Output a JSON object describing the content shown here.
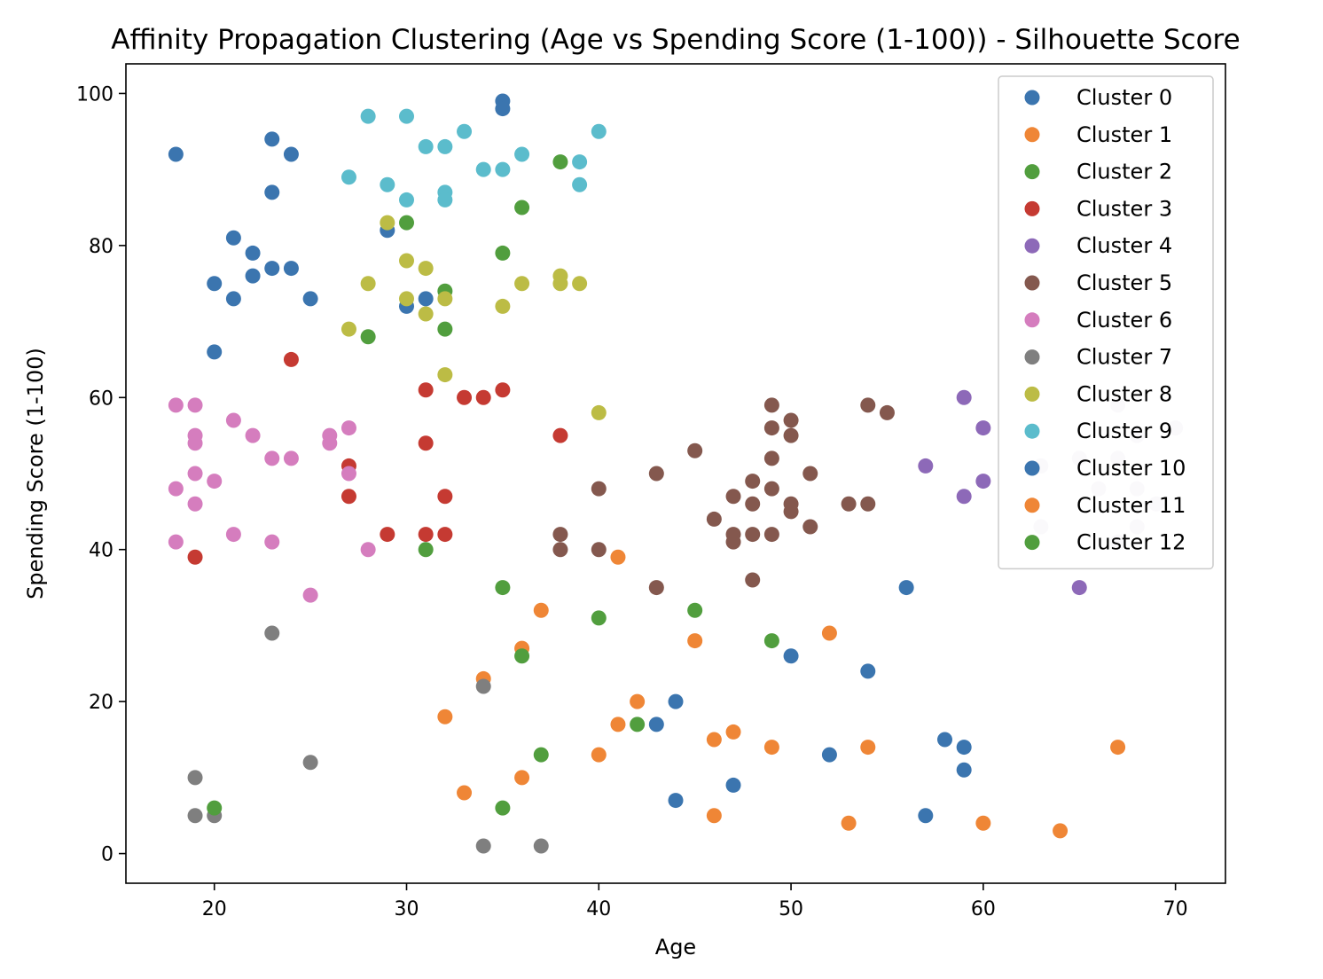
{
  "chart_data": {
    "type": "scatter",
    "title": "Affinity Propagation Clustering (Age vs Spending Score (1-100)) - Silhouette Score",
    "xlabel": "Age",
    "ylabel": "Spending Score (1-100)",
    "xlim": [
      15.4,
      72.6
    ],
    "ylim": [
      -3.9,
      103.9
    ],
    "xticks": [
      20,
      30,
      40,
      50,
      60,
      70
    ],
    "yticks": [
      0,
      20,
      40,
      60,
      80,
      100
    ],
    "grid": false,
    "legend_position": "top-right",
    "series": [
      {
        "name": "Cluster 0",
        "color": "#3b75af",
        "x": [
          35,
          35,
          29,
          30,
          31
        ],
        "y": [
          99,
          98,
          82,
          72,
          73
        ]
      },
      {
        "name": "Cluster 1",
        "color": "#ef8636",
        "x": [
          41,
          36,
          37,
          34,
          32,
          33,
          36,
          40,
          41,
          42
        ],
        "y": [
          39,
          27,
          32,
          23,
          18,
          8,
          10,
          13,
          17,
          20
        ]
      },
      {
        "name": "Cluster 2",
        "color": "#519e3e",
        "x": [
          38,
          30,
          36,
          35,
          32,
          32,
          28
        ],
        "y": [
          91,
          83,
          85,
          79,
          74,
          69,
          68
        ]
      },
      {
        "name": "Cluster 3",
        "color": "#c53a32",
        "x": [
          24,
          31,
          33,
          34,
          35,
          31,
          38,
          27,
          27,
          32,
          29,
          31,
          32,
          19
        ],
        "y": [
          65,
          61,
          60,
          60,
          61,
          54,
          55,
          51,
          47,
          47,
          42,
          42,
          42,
          39
        ]
      },
      {
        "name": "Cluster 4",
        "color": "#8d69b8",
        "x": [
          59,
          60,
          57,
          60,
          59,
          65
        ],
        "y": [
          60,
          56,
          51,
          49,
          47,
          35
        ]
      },
      {
        "name": "Cluster 5",
        "color": "#84584e",
        "x": [
          40,
          38,
          38,
          40,
          43,
          45,
          46,
          47,
          47,
          47,
          48,
          48,
          48,
          48,
          49,
          49,
          49,
          49,
          49,
          50,
          50,
          50,
          50,
          51,
          51,
          53,
          54,
          54,
          55,
          43
        ],
        "y": [
          48,
          42,
          40,
          40,
          50,
          53,
          44,
          47,
          42,
          41,
          49,
          46,
          42,
          36,
          59,
          56,
          52,
          48,
          42,
          57,
          55,
          46,
          45,
          50,
          43,
          46,
          46,
          59,
          58,
          35
        ]
      },
      {
        "name": "Cluster 6",
        "color": "#d57dbe",
        "x": [
          18,
          19,
          19,
          19,
          19,
          19,
          18,
          18,
          20,
          21,
          21,
          22,
          23,
          23,
          24,
          26,
          26,
          27,
          27,
          28,
          25
        ],
        "y": [
          59,
          59,
          55,
          54,
          50,
          46,
          48,
          41,
          49,
          57,
          42,
          55,
          52,
          41,
          52,
          55,
          54,
          56,
          50,
          40,
          34
        ]
      },
      {
        "name": "Cluster 7",
        "color": "#7f7f7f",
        "x": [
          23,
          34,
          25,
          19,
          19,
          20,
          34,
          37
        ],
        "y": [
          29,
          22,
          12,
          10,
          5,
          5,
          1,
          1
        ]
      },
      {
        "name": "Cluster 8",
        "color": "#bcbc45",
        "x": [
          29,
          30,
          31,
          28,
          30,
          32,
          31,
          27,
          32,
          35,
          36,
          38,
          38,
          39,
          40
        ],
        "y": [
          83,
          78,
          77,
          75,
          73,
          73,
          71,
          69,
          63,
          72,
          75,
          76,
          75,
          75,
          58
        ]
      },
      {
        "name": "Cluster 9",
        "color": "#5bbccc",
        "x": [
          28,
          30,
          27,
          29,
          30,
          31,
          32,
          32,
          32,
          33,
          34,
          35,
          36,
          39,
          39,
          40
        ],
        "y": [
          97,
          97,
          89,
          88,
          86,
          93,
          93,
          87,
          86,
          95,
          90,
          90,
          92,
          91,
          88,
          95
        ]
      },
      {
        "name": "Cluster 10",
        "color": "#3b75af",
        "x": [
          18,
          23,
          24,
          23,
          21,
          22,
          22,
          20,
          23,
          24,
          21,
          25,
          20,
          56,
          50,
          54,
          44,
          43,
          58,
          59,
          59,
          47,
          52,
          44,
          57
        ],
        "y": [
          92,
          94,
          92,
          87,
          81,
          79,
          76,
          75,
          77,
          77,
          73,
          73,
          66,
          35,
          26,
          24,
          20,
          17,
          15,
          14,
          11,
          9,
          13,
          7,
          5
        ]
      },
      {
        "name": "Cluster 11",
        "color": "#ef8636",
        "x": [
          45,
          52,
          46,
          47,
          49,
          54,
          46,
          53,
          60,
          64,
          67
        ],
        "y": [
          28,
          29,
          15,
          16,
          14,
          14,
          5,
          4,
          4,
          3,
          14
        ]
      },
      {
        "name": "Cluster 12",
        "color": "#519e3e",
        "x": [
          31,
          35,
          40,
          45,
          36,
          49,
          42,
          37,
          35,
          20
        ],
        "y": [
          40,
          35,
          31,
          32,
          26,
          28,
          17,
          13,
          6,
          6
        ]
      },
      {
        "color": "#e4deec",
        "x": [
          67,
          70,
          68,
          63,
          65,
          67,
          66,
          68,
          69,
          63,
          68,
          67
        ],
        "y": [
          59,
          56,
          55,
          51,
          52,
          52,
          48,
          48,
          46,
          43,
          43,
          41
        ]
      }
    ]
  }
}
